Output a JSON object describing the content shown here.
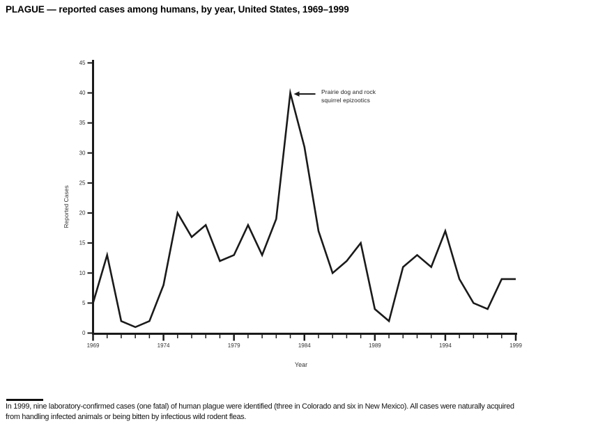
{
  "page": {
    "footnote_line1": "In 1999, nine laboratory-confirmed cases (one fatal) of human plague were identified (three in Colorado and six in New Mexico). All cases were naturally acquired",
    "footnote_line2": "from handling infected animals or being bitten by infectious wild rodent fleas."
  },
  "chart_data": {
    "type": "line",
    "title": "PLAGUE — reported cases among humans, by year, United States, 1969–1999",
    "xlabel": "Year",
    "ylabel": "Reported Cases",
    "x": [
      1969,
      1970,
      1971,
      1972,
      1973,
      1974,
      1975,
      1976,
      1977,
      1978,
      1979,
      1980,
      1981,
      1982,
      1983,
      1984,
      1985,
      1986,
      1987,
      1988,
      1989,
      1990,
      1991,
      1992,
      1993,
      1994,
      1995,
      1996,
      1997,
      1998,
      1999
    ],
    "values": [
      5,
      13,
      2,
      1,
      2,
      8,
      20,
      16,
      18,
      12,
      13,
      18,
      13,
      19,
      40,
      31,
      17,
      10,
      12,
      15,
      4,
      2,
      11,
      13,
      11,
      17,
      9,
      5,
      4,
      9,
      9
    ],
    "ylim": [
      0,
      45
    ],
    "y_ticks": [
      0,
      5,
      10,
      15,
      20,
      25,
      30,
      35,
      40,
      45
    ],
    "x_major_ticks": [
      1969,
      1974,
      1979,
      1984,
      1989,
      1994,
      1999
    ],
    "grid": false,
    "legend": "none",
    "line_color": "#1a1a1a",
    "annotation": {
      "line1": "Prairie dog and rock",
      "line2": "squirrel epizootics",
      "points_to": {
        "year": 1983,
        "value": 40
      }
    }
  }
}
